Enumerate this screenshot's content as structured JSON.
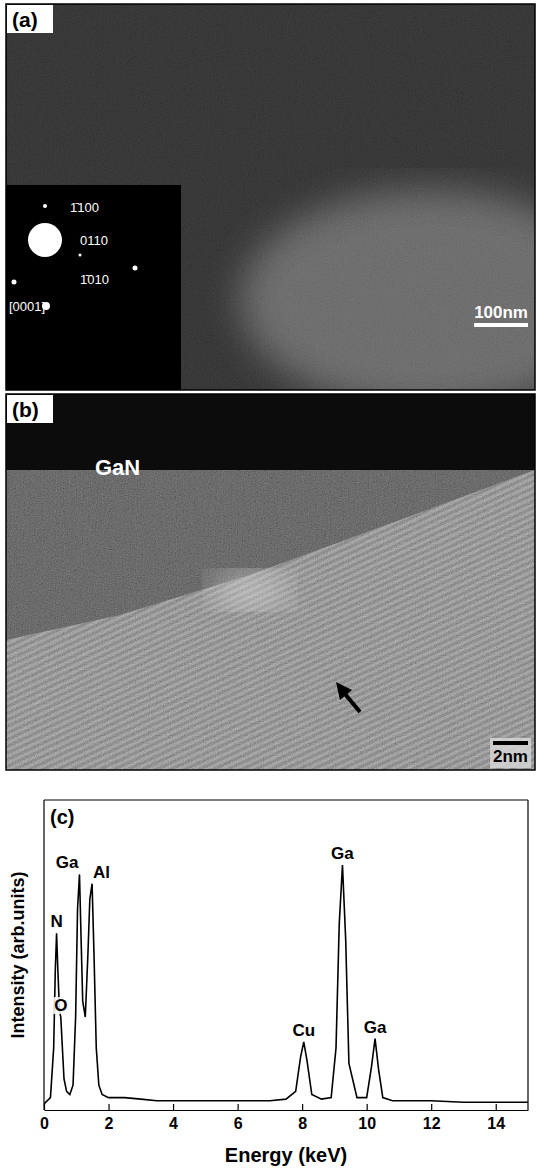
{
  "panel_a": {
    "letter": "(a)",
    "scale_bar": "100nm",
    "diffraction_labels": [
      "1̄100",
      "0110",
      "1̄010",
      "[0001]"
    ]
  },
  "panel_b": {
    "letter": "(b)",
    "label": "GaN",
    "scale_bar": "2nm"
  },
  "chart_data": {
    "type": "line",
    "title": "(c)",
    "x_label": "Energy  (keV)",
    "y_label": "Intensity  (arb.units)",
    "xlim": [
      0,
      15
    ],
    "xticks": [
      0,
      2,
      4,
      6,
      8,
      10,
      12,
      14
    ],
    "ylim": [
      0,
      100
    ],
    "tick_labels": "x",
    "color": "#000000",
    "x": [
      0,
      0.2,
      0.3,
      0.35,
      0.39,
      0.43,
      0.48,
      0.52,
      0.56,
      0.62,
      0.7,
      0.8,
      0.9,
      0.98,
      1.04,
      1.1,
      1.15,
      1.2,
      1.28,
      1.36,
      1.42,
      1.49,
      1.55,
      1.62,
      1.7,
      1.8,
      2.0,
      2.5,
      3,
      3.5,
      4,
      4.5,
      5,
      5.5,
      6,
      6.5,
      7,
      7.5,
      7.8,
      7.95,
      8.05,
      8.15,
      8.3,
      8.6,
      8.9,
      9.05,
      9.15,
      9.25,
      9.35,
      9.45,
      9.7,
      10.0,
      10.15,
      10.26,
      10.37,
      10.5,
      10.8,
      11.5,
      12,
      13,
      14,
      15
    ],
    "values": [
      2,
      4,
      20,
      45,
      57,
      45,
      32,
      30,
      22,
      10,
      6,
      5,
      8,
      30,
      65,
      76,
      55,
      35,
      30,
      50,
      68,
      73,
      50,
      20,
      8,
      5,
      4,
      4,
      3.5,
      3,
      3,
      3,
      3,
      3,
      3,
      3,
      3,
      3.5,
      6,
      17,
      22,
      16,
      5,
      3.5,
      4,
      20,
      60,
      79,
      55,
      15,
      4,
      4,
      14,
      23,
      13,
      4,
      3,
      3,
      3,
      2.5,
      2.5,
      2.5
    ],
    "annotations": [
      {
        "text": "N",
        "x": 0.39
      },
      {
        "text": "O",
        "x": 0.52
      },
      {
        "text": "Ga",
        "x": 1.1
      },
      {
        "text": "Al",
        "x": 1.49
      },
      {
        "text": "Cu",
        "x": 8.05
      },
      {
        "text": "Ga",
        "x": 9.25
      },
      {
        "text": "Ga",
        "x": 10.26
      }
    ]
  }
}
